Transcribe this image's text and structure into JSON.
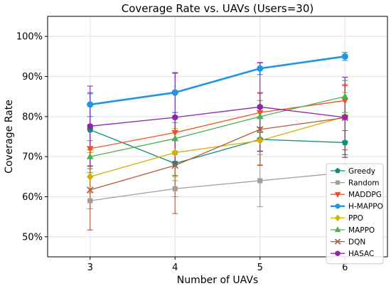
{
  "chart_data": {
    "type": "line",
    "title": "Coverage Rate vs. UAVs (Users=30)",
    "xlabel": "Number of UAVs",
    "ylabel": "Coverage Rate",
    "x": [
      3,
      4,
      5,
      6
    ],
    "x_tick_labels": [
      "3",
      "4",
      "5",
      "6"
    ],
    "xlim": [
      2.5,
      6.5
    ],
    "ylim": [
      45,
      105
    ],
    "y_ticks": [
      50,
      60,
      70,
      80,
      90,
      100
    ],
    "y_tick_labels": [
      "50%",
      "60%",
      "70%",
      "80%",
      "90%",
      "100%"
    ],
    "grid": true,
    "legend_position": "lower-right",
    "series": [
      {
        "name": "Greedy",
        "color": "#138a7f",
        "marker": "pentagon",
        "values": [
          76.7,
          68.3,
          74.3,
          73.5
        ],
        "errors": [
          9,
          3,
          3,
          3
        ]
      },
      {
        "name": "Random",
        "color": "#9e9e9e",
        "marker": "square",
        "values": [
          59,
          62,
          64,
          66
        ],
        "errors": [
          2,
          2,
          6.5,
          2
        ]
      },
      {
        "name": "MADDPG",
        "color": "#f4511e",
        "marker": "triangle-down",
        "values": [
          72,
          76,
          81,
          84
        ],
        "errors": [
          5,
          5,
          5,
          4
        ]
      },
      {
        "name": "H-MAPPO",
        "color": "#2196e0",
        "marker": "circle",
        "values": [
          83,
          86,
          92,
          95
        ],
        "errors": [
          3,
          5,
          1.5,
          1
        ]
      },
      {
        "name": "PPO",
        "color": "#d4b106",
        "marker": "diamond",
        "values": [
          65,
          71,
          74,
          80
        ],
        "errors": [
          6,
          6,
          6,
          6
        ]
      },
      {
        "name": "MAPPO",
        "color": "#4caf50",
        "marker": "triangle-up",
        "values": [
          70,
          74.5,
          80,
          85
        ],
        "errors": [
          4,
          4,
          4,
          4
        ]
      },
      {
        "name": "DQN",
        "color": "#b35a3a",
        "marker": "x",
        "values": [
          61.7,
          67.8,
          76.8,
          79.7
        ],
        "errors": [
          10,
          12,
          9,
          8
        ]
      },
      {
        "name": "HASAC",
        "color": "#8e24aa",
        "marker": "hexagon",
        "values": [
          77.6,
          79.8,
          82.4,
          79.8
        ],
        "errors": [
          10,
          11,
          11,
          10
        ]
      }
    ]
  }
}
